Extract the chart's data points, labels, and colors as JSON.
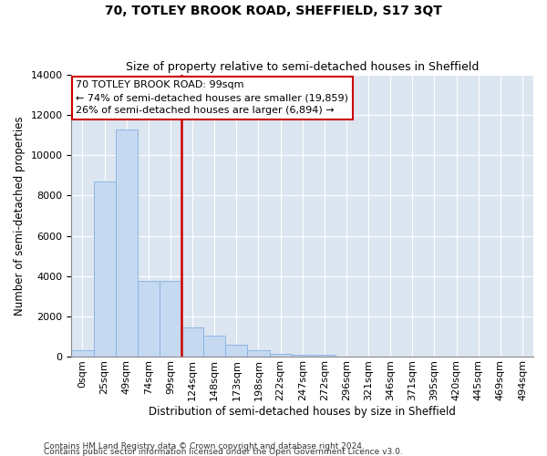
{
  "title": "70, TOTLEY BROOK ROAD, SHEFFIELD, S17 3QT",
  "subtitle": "Size of property relative to semi-detached houses in Sheffield",
  "xlabel": "Distribution of semi-detached houses by size in Sheffield",
  "ylabel": "Number of semi-detached properties",
  "footnote1": "Contains HM Land Registry data © Crown copyright and database right 2024.",
  "footnote2": "Contains public sector information licensed under the Open Government Licence v3.0.",
  "annotation_line1": "70 TOTLEY BROOK ROAD: 99sqm",
  "annotation_line2": "← 74% of semi-detached houses are smaller (19,859)",
  "annotation_line3": "26% of semi-detached houses are larger (6,894) →",
  "bar_color": "#c5d9f1",
  "bar_edge_color": "#8db4e2",
  "marker_line_color": "#cc0000",
  "annotation_box_edgecolor": "#cc0000",
  "plot_bg_color": "#dce6f1",
  "grid_color": "#ffffff",
  "categories": [
    "0sqm",
    "25sqm",
    "49sqm",
    "74sqm",
    "99sqm",
    "124sqm",
    "148sqm",
    "173sqm",
    "198sqm",
    "222sqm",
    "247sqm",
    "272sqm",
    "296sqm",
    "321sqm",
    "346sqm",
    "371sqm",
    "395sqm",
    "420sqm",
    "445sqm",
    "469sqm",
    "494sqm"
  ],
  "values": [
    300,
    8700,
    11300,
    3750,
    3750,
    1450,
    1050,
    600,
    300,
    150,
    100,
    100,
    0,
    0,
    0,
    0,
    0,
    0,
    0,
    0,
    0
  ],
  "property_bar_idx": 4,
  "ylim": [
    0,
    14000
  ],
  "yticks": [
    0,
    2000,
    4000,
    6000,
    8000,
    10000,
    12000,
    14000
  ],
  "title_fontsize": 10,
  "subtitle_fontsize": 9,
  "axis_label_fontsize": 8.5,
  "tick_fontsize": 8,
  "annotation_fontsize": 8,
  "footnote_fontsize": 6.5
}
